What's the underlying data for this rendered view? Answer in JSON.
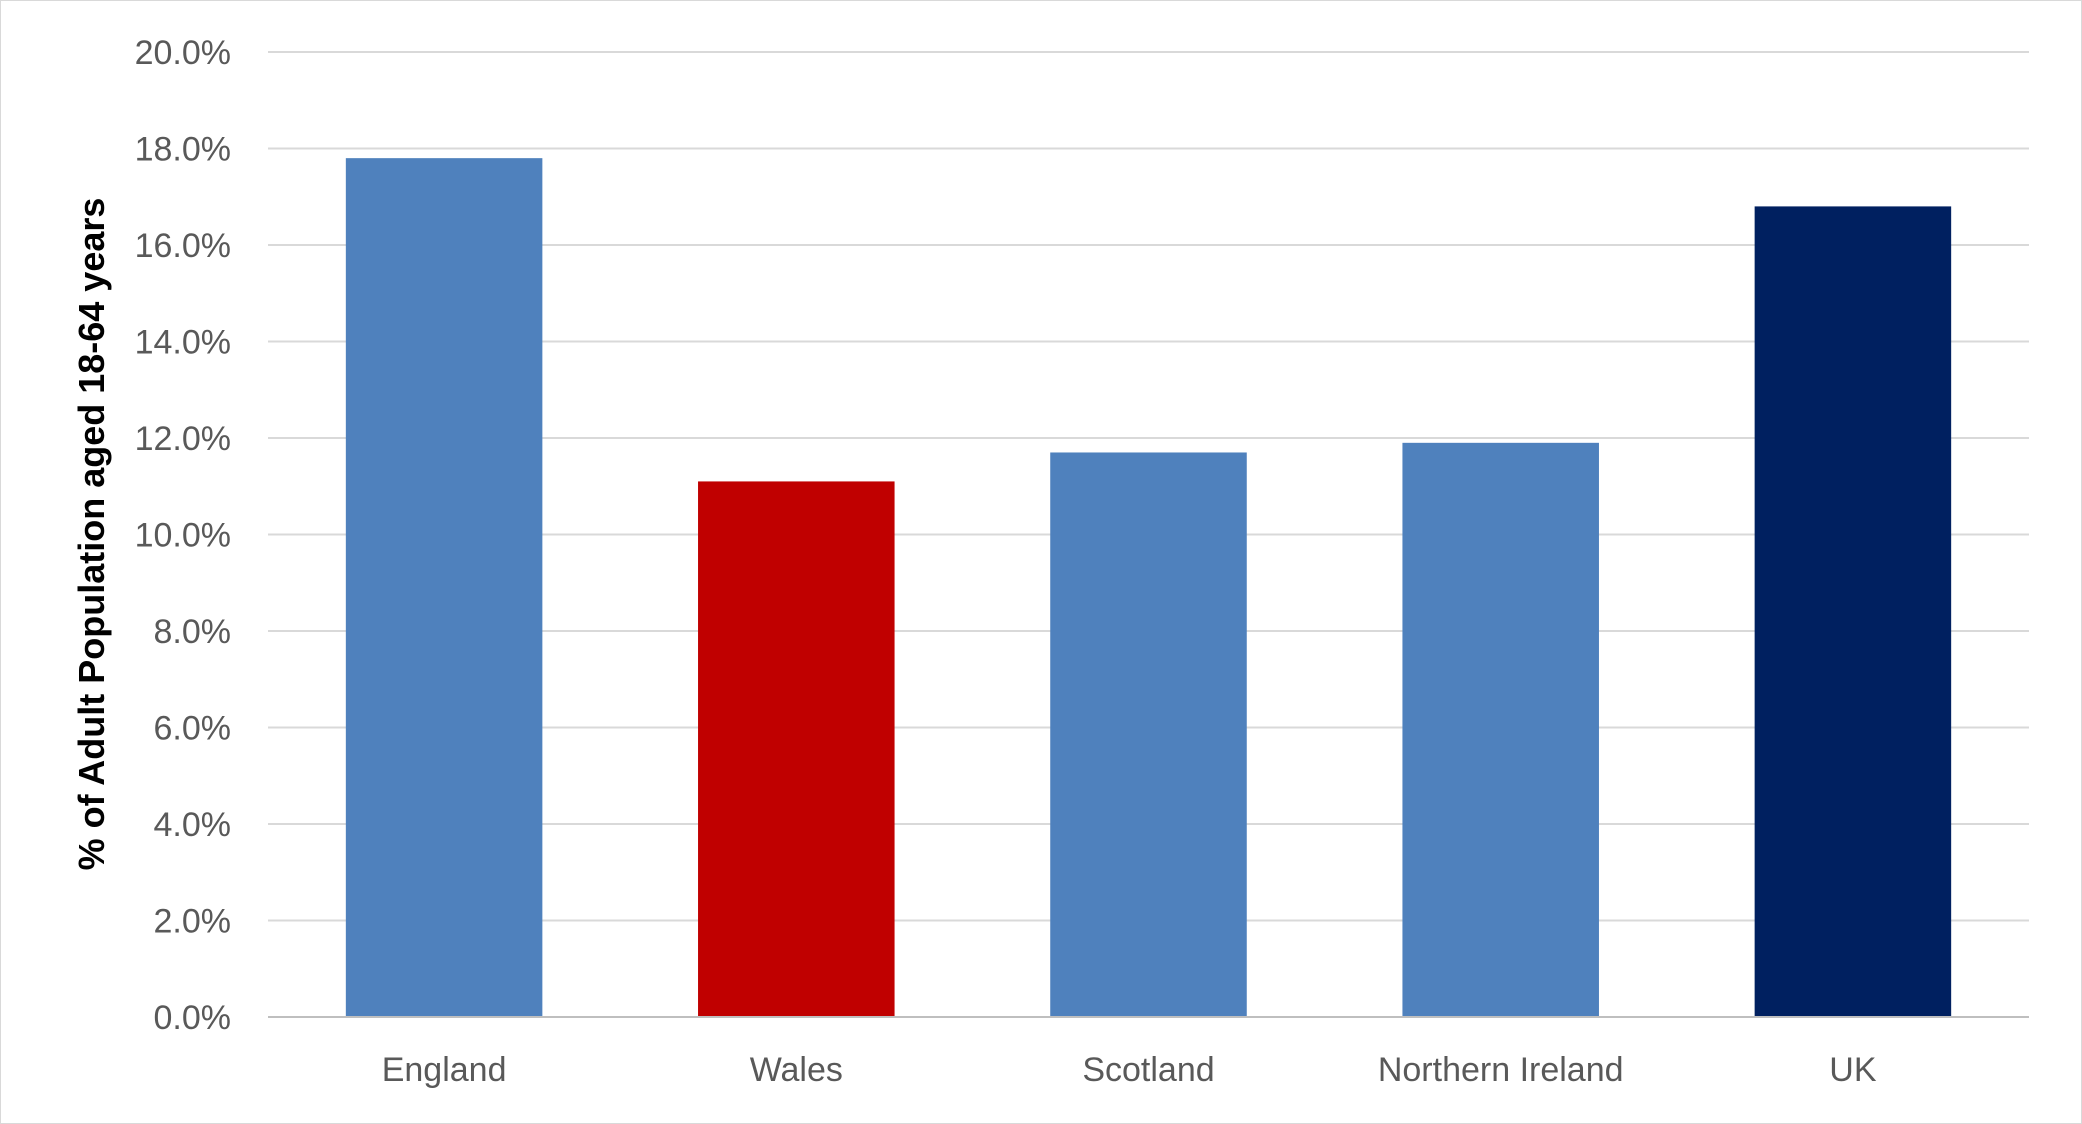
{
  "chart_data": {
    "type": "bar",
    "title": "",
    "xlabel": "",
    "ylabel": "% of Adult Population aged 18-64 years",
    "categories": [
      "England",
      "Wales",
      "Scotland",
      "Northern Ireland",
      "UK"
    ],
    "values": [
      17.8,
      11.1,
      11.7,
      11.9,
      16.8
    ],
    "value_format": "percent_one_decimal",
    "ylim": [
      0,
      20
    ],
    "ytick_step": 2,
    "yticks": [
      "0.0%",
      "2.0%",
      "4.0%",
      "6.0%",
      "8.0%",
      "10.0%",
      "12.0%",
      "14.0%",
      "16.0%",
      "18.0%",
      "20.0%"
    ],
    "grid": true,
    "legend": "none",
    "bar_colors": [
      "#4f81bd",
      "#c00000",
      "#4f81bd",
      "#4f81bd",
      "#002060"
    ]
  }
}
